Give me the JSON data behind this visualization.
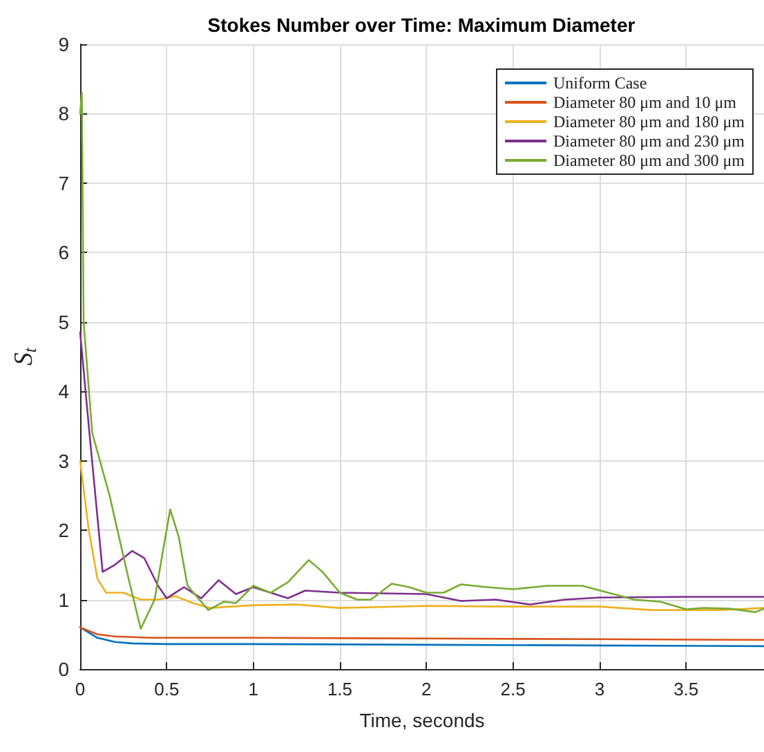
{
  "chart_data": {
    "type": "line",
    "title": "Stokes Number over Time: Maximum Diameter",
    "xlabel": "Time, seconds",
    "ylabel": "S$_{t}$",
    "xlim": [
      0,
      3.95
    ],
    "xticks": [
      0,
      0.5,
      1,
      1.5,
      2,
      2.5,
      3,
      3.5
    ],
    "ylim": [
      0,
      9
    ],
    "yticks": [
      0,
      1,
      2,
      3,
      4,
      5,
      6,
      7,
      8,
      9
    ],
    "grid": true,
    "legend": "top right",
    "marker": "none",
    "line_style": "solid",
    "series": [
      {
        "name": "Uniform Case",
        "color": "#0072bd",
        "x": [
          0,
          0.1,
          0.2,
          0.3,
          0.5,
          1,
          2,
          3,
          3.95
        ],
        "values": [
          0.6,
          0.45,
          0.39,
          0.37,
          0.36,
          0.36,
          0.35,
          0.34,
          0.33
        ]
      },
      {
        "name": "Diameter 80 μm and 10 μm",
        "color": "#d95319",
        "x": [
          0,
          0.1,
          0.2,
          0.4,
          1,
          2,
          3,
          3.95
        ],
        "values": [
          0.6,
          0.5,
          0.47,
          0.45,
          0.45,
          0.44,
          0.43,
          0.42
        ]
      },
      {
        "name": "Diameter 80 μm and 180 μm",
        "color": "#edb120",
        "x": [
          0,
          0.05,
          0.1,
          0.15,
          0.25,
          0.35,
          0.45,
          0.55,
          0.65,
          0.75,
          1,
          1.25,
          1.5,
          2,
          2.5,
          3,
          3.3,
          3.7,
          3.95
        ],
        "values": [
          3.0,
          2.0,
          1.3,
          1.1,
          1.1,
          1.0,
          1.0,
          1.05,
          0.95,
          0.88,
          0.92,
          0.93,
          0.88,
          0.91,
          0.9,
          0.9,
          0.85,
          0.85,
          0.88
        ]
      },
      {
        "name": "Diameter 80 μm and 230 μm",
        "color": "#7e2f8e",
        "x": [
          0,
          0.05,
          0.13,
          0.2,
          0.3,
          0.37,
          0.45,
          0.5,
          0.6,
          0.7,
          0.8,
          0.9,
          1.0,
          1.2,
          1.3,
          1.5,
          2.0,
          2.2,
          2.4,
          2.6,
          2.8,
          3.0,
          3.5,
          3.95
        ],
        "values": [
          4.85,
          3.5,
          1.4,
          1.5,
          1.7,
          1.6,
          1.2,
          1.02,
          1.18,
          1.02,
          1.28,
          1.08,
          1.18,
          1.02,
          1.13,
          1.1,
          1.08,
          0.98,
          1.0,
          0.93,
          1.0,
          1.03,
          1.04,
          1.04
        ]
      },
      {
        "name": "Diameter 80 μm and 300 μm",
        "color": "#77ac30",
        "x": [
          0,
          0.01,
          0.02,
          0.07,
          0.17,
          0.28,
          0.35,
          0.43,
          0.52,
          0.57,
          0.62,
          0.74,
          0.83,
          0.9,
          1.0,
          1.1,
          1.2,
          1.32,
          1.4,
          1.5,
          1.6,
          1.68,
          1.8,
          1.9,
          2.0,
          2.1,
          2.2,
          2.35,
          2.5,
          2.7,
          2.9,
          3.05,
          3.2,
          3.35,
          3.5,
          3.6,
          3.75,
          3.9,
          3.95
        ],
        "values": [
          8.0,
          8.3,
          5.0,
          3.4,
          2.5,
          1.3,
          0.58,
          1.0,
          2.3,
          1.9,
          1.2,
          0.85,
          0.97,
          0.95,
          1.2,
          1.1,
          1.25,
          1.57,
          1.4,
          1.1,
          1.0,
          1.0,
          1.23,
          1.18,
          1.1,
          1.1,
          1.22,
          1.18,
          1.15,
          1.2,
          1.2,
          1.1,
          1.0,
          0.97,
          0.86,
          0.88,
          0.87,
          0.82,
          0.87
        ]
      }
    ]
  }
}
